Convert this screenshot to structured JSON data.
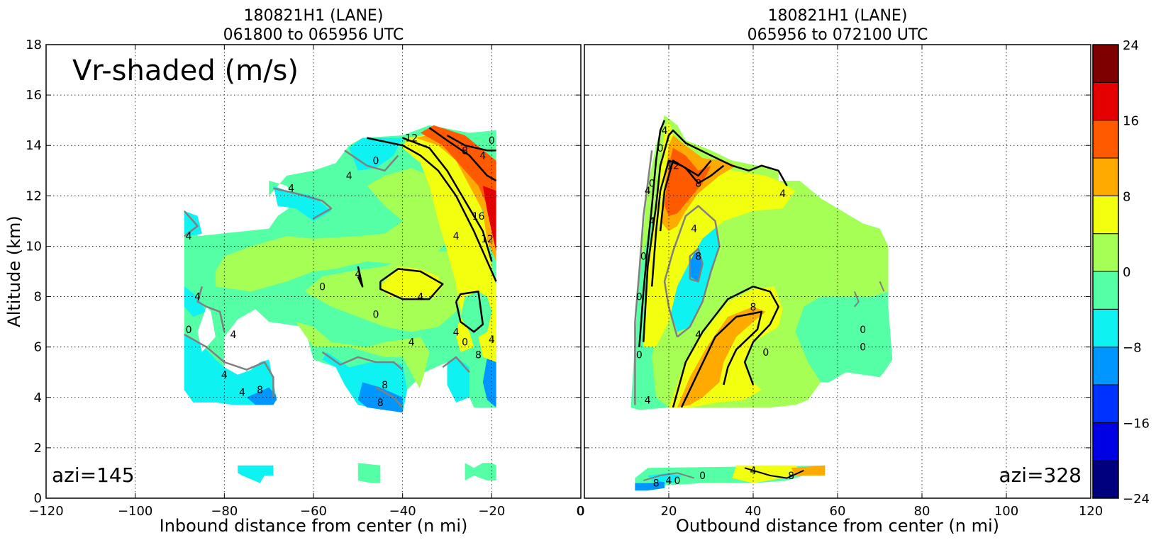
{
  "chart_data": [
    {
      "type": "heatmap",
      "title_line1": "180821H1 (LANE)",
      "title_line2": "061800 to 065956 UTC",
      "xlabel": "Inbound distance from center (n mi)",
      "ylabel": "Altitude (km)",
      "xlim": [
        -120,
        0
      ],
      "ylim": [
        0,
        18
      ],
      "x_ticks": [
        "−120",
        "−100",
        "−80",
        "−60",
        "−40",
        "−20",
        "0"
      ],
      "x_tick_values": [
        -120,
        -100,
        -80,
        -60,
        -40,
        -20,
        0
      ],
      "y_ticks": [
        "0",
        "2",
        "4",
        "6",
        "8",
        "10",
        "12",
        "14",
        "16",
        "18"
      ],
      "y_tick_values": [
        0,
        2,
        4,
        6,
        8,
        10,
        12,
        14,
        16,
        18
      ],
      "grid": true,
      "annotation_title": "Vr-shaded (m/s)",
      "annotation_azi": "azi=145",
      "contour_labels": [
        {
          "text": "12",
          "x": -38,
          "y": 14.3
        },
        {
          "text": "0",
          "x": -20,
          "y": 14.2
        },
        {
          "text": "8",
          "x": -26,
          "y": 13.8
        },
        {
          "text": "4",
          "x": -22,
          "y": 13.6
        },
        {
          "text": "0",
          "x": -46,
          "y": 13.4
        },
        {
          "text": "4",
          "x": -52,
          "y": 12.8
        },
        {
          "text": "4",
          "x": -65,
          "y": 12.3
        },
        {
          "text": "16",
          "x": -23,
          "y": 11.2
        },
        {
          "text": "12",
          "x": -21,
          "y": 10.3
        },
        {
          "text": "4",
          "x": -28,
          "y": 10.4
        },
        {
          "text": "4",
          "x": -88,
          "y": 10.4
        },
        {
          "text": "4",
          "x": -50,
          "y": 8.9
        },
        {
          "text": "0",
          "x": -58,
          "y": 8.4
        },
        {
          "text": "4",
          "x": -36,
          "y": 8.0
        },
        {
          "text": "4",
          "x": -86,
          "y": 8.0
        },
        {
          "text": "0",
          "x": -46,
          "y": 7.3
        },
        {
          "text": "0",
          "x": -88,
          "y": 6.7
        },
        {
          "text": "4",
          "x": -28,
          "y": 6.6
        },
        {
          "text": "4",
          "x": -78,
          "y": 6.5
        },
        {
          "text": "4",
          "x": -38,
          "y": 6.2
        },
        {
          "text": "0",
          "x": -26,
          "y": 6.2
        },
        {
          "text": "4",
          "x": -20,
          "y": 6.3
        },
        {
          "text": "8",
          "x": -23,
          "y": 5.7
        },
        {
          "text": "4",
          "x": -80,
          "y": 4.9
        },
        {
          "text": "8",
          "x": -44,
          "y": 4.5
        },
        {
          "text": "4",
          "x": -76,
          "y": 4.2
        },
        {
          "text": "8",
          "x": -72,
          "y": 4.3
        },
        {
          "text": "8",
          "x": -45,
          "y": 3.8
        }
      ]
    },
    {
      "type": "heatmap",
      "title_line1": "180821H1 (LANE)",
      "title_line2": "065956 to 072100 UTC",
      "xlabel": "Outbound distance from center (n mi)",
      "xlim": [
        0,
        120
      ],
      "ylim": [
        0,
        18
      ],
      "x_ticks": [
        "0",
        "20",
        "40",
        "60",
        "80",
        "100",
        "120"
      ],
      "x_tick_values": [
        0,
        20,
        40,
        60,
        80,
        100,
        120
      ],
      "grid": true,
      "annotation_azi": "azi=328",
      "contour_labels": [
        {
          "text": "4",
          "x": 19,
          "y": 14.6
        },
        {
          "text": "0",
          "x": 18,
          "y": 13.9
        },
        {
          "text": "12",
          "x": 21,
          "y": 13.2
        },
        {
          "text": "8",
          "x": 27,
          "y": 12.5
        },
        {
          "text": "0",
          "x": 16,
          "y": 12.5
        },
        {
          "text": "4",
          "x": 15,
          "y": 12.2
        },
        {
          "text": "4",
          "x": 47,
          "y": 12.1
        },
        {
          "text": "4",
          "x": 16,
          "y": 11.0
        },
        {
          "text": "4",
          "x": 26,
          "y": 10.7
        },
        {
          "text": "0",
          "x": 14,
          "y": 9.6
        },
        {
          "text": "8",
          "x": 27,
          "y": 9.6
        },
        {
          "text": "0",
          "x": 13,
          "y": 8.0
        },
        {
          "text": "8",
          "x": 40,
          "y": 7.6
        },
        {
          "text": "4",
          "x": 27,
          "y": 6.5
        },
        {
          "text": "0",
          "x": 66,
          "y": 6.7
        },
        {
          "text": "0",
          "x": 66,
          "y": 6.0
        },
        {
          "text": "0",
          "x": 43,
          "y": 5.8
        },
        {
          "text": "0",
          "x": 13,
          "y": 5.7
        },
        {
          "text": "4",
          "x": 15,
          "y": 3.9
        },
        {
          "text": "8",
          "x": 17,
          "y": 0.6
        },
        {
          "text": "4",
          "x": 20,
          "y": 0.7
        },
        {
          "text": "0",
          "x": 22,
          "y": 0.7
        },
        {
          "text": "0",
          "x": 28,
          "y": 0.9
        },
        {
          "text": "4",
          "x": 40,
          "y": 1.1
        },
        {
          "text": "8",
          "x": 49,
          "y": 0.9
        }
      ]
    }
  ],
  "colorbar": {
    "levels": [
      -24,
      -20,
      -16,
      -12,
      -8,
      -4,
      0,
      4,
      8,
      12,
      16,
      20,
      24
    ],
    "colors": [
      "#00007f",
      "#0000e5",
      "#0032ff",
      "#0096ff",
      "#0ff2f2",
      "#54ffa6",
      "#a6ff54",
      "#f2ff0f",
      "#ffaa00",
      "#ff5a00",
      "#e50000",
      "#7f0000"
    ],
    "tick_labels": [
      "−24",
      "−16",
      "−8",
      "0",
      "8",
      "16",
      "24"
    ],
    "tick_values": [
      -24,
      -16,
      -8,
      0,
      8,
      16,
      24
    ]
  }
}
